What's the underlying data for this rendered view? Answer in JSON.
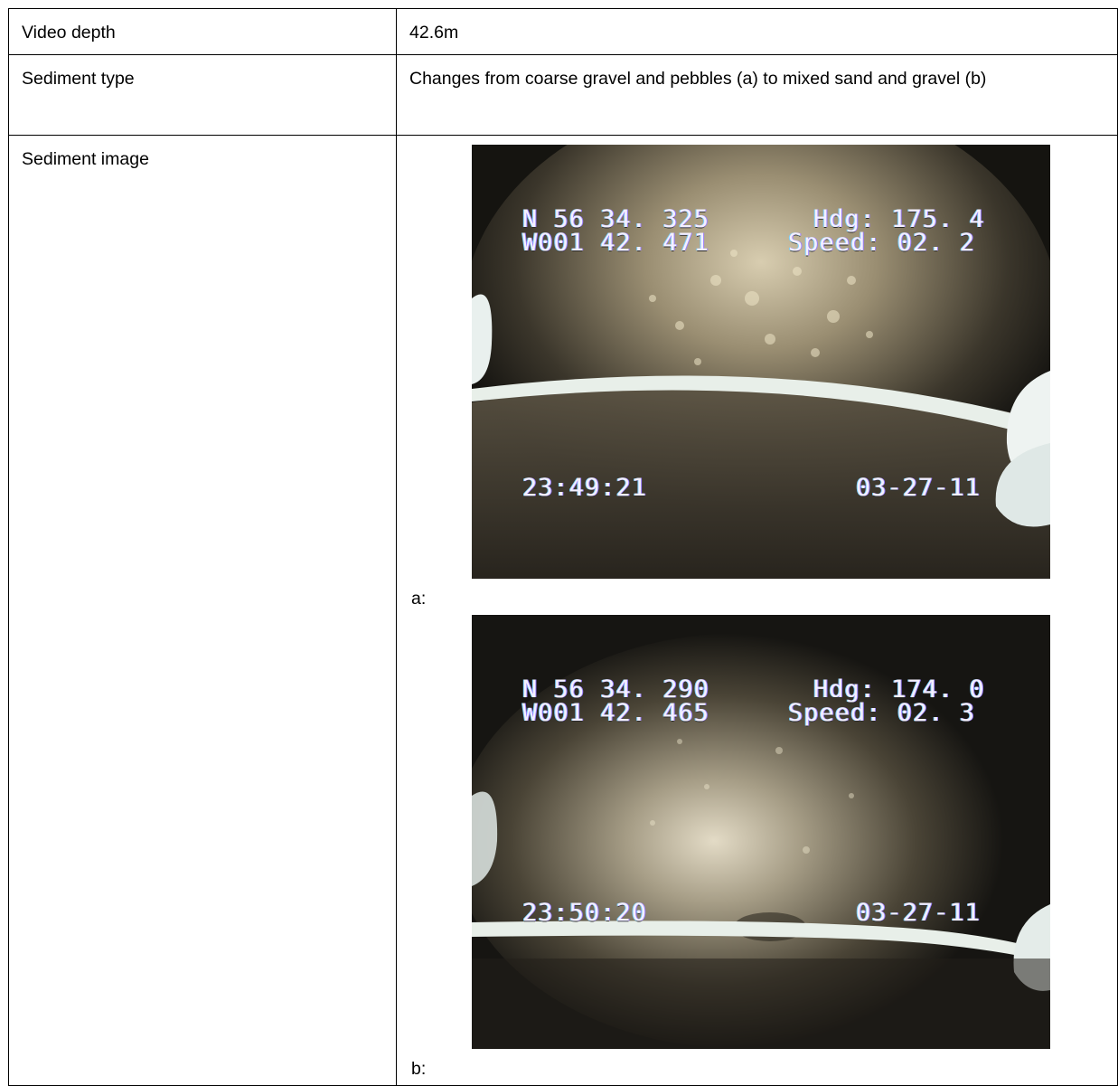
{
  "table": {
    "row1": {
      "label": "Video depth",
      "value": "42.6m"
    },
    "row2": {
      "label": "Sediment type",
      "value": "Changes from coarse gravel and pebbles (a) to mixed sand and gravel (b)"
    },
    "row3": {
      "label": "Sediment image"
    }
  },
  "images": [
    {
      "caption": "a:",
      "lat": "N 56 34. 325",
      "lon": "W001 42. 471",
      "hdg": "Hdg: 175. 4",
      "speed": "Speed: 02. 2",
      "time": "23:49:21",
      "date": "03-27-11"
    },
    {
      "caption": "b:",
      "lat": "N 56 34. 290",
      "lon": "W001 42. 465",
      "hdg": "Hdg: 174. 0",
      "speed": "Speed: 02. 3",
      "time": "23:50:20",
      "date": "03-27-11"
    }
  ],
  "colors": {
    "border": "#000000",
    "osd_text": "#f4f0ff",
    "seafloor": "#6e6451",
    "bar": "#e8efe9"
  }
}
